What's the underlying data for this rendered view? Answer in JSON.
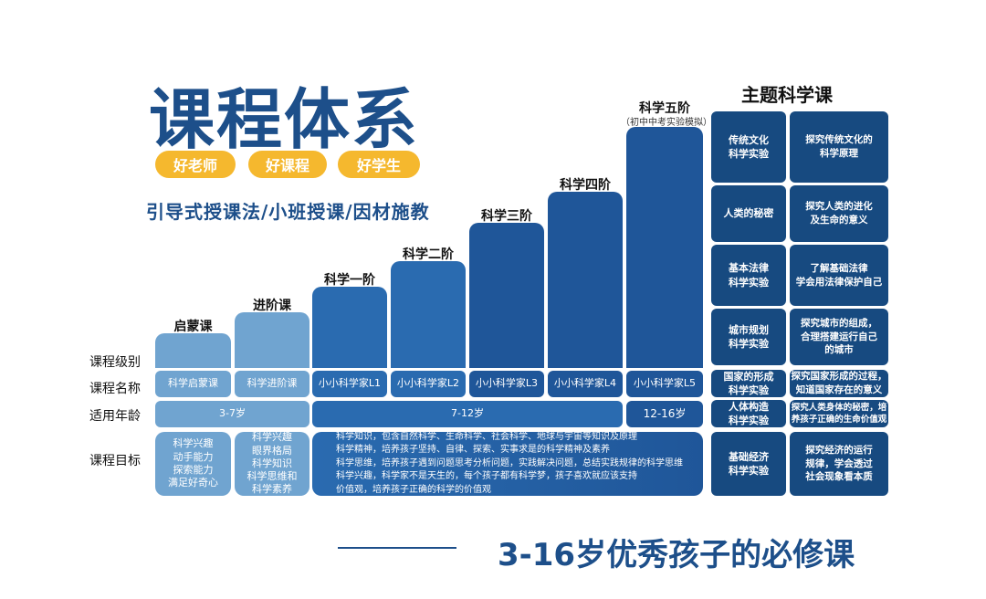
{
  "title": "课程体系",
  "pills": [
    "好老师",
    "好课程",
    "好学生"
  ],
  "subtitle": "引导式授课法/小班授课/因材施教",
  "row_labels": [
    "课程级别",
    "课程名称",
    "适用年龄",
    "课程目标"
  ],
  "levels": [
    {
      "label": "启蒙课",
      "name": "科学启蒙课"
    },
    {
      "label": "进阶课",
      "name": "科学进阶课"
    },
    {
      "label": "科学一阶",
      "name": "小小科学家L1"
    },
    {
      "label": "科学二阶",
      "name": "小小科学家L2"
    },
    {
      "label": "科学三阶",
      "name": "小小科学家L3"
    },
    {
      "label": "科学四阶",
      "name": "小小科学家L4"
    },
    {
      "label": "科学五阶",
      "sublabel": "（初中中考实验模拟）",
      "name": "小小科学家L5"
    }
  ],
  "ages": [
    "3-7岁",
    "7-12岁",
    "12-16岁"
  ],
  "goals": {
    "g1": [
      "科学兴趣",
      "动手能力",
      "探索能力",
      "满足好奇心"
    ],
    "g2": [
      "科学兴趣",
      "眼界格局",
      "科学知识",
      "科学思维和",
      "科学素养"
    ],
    "g3": [
      "科学知识，包含自然科学、生命科学、社会科学、地球与宇宙等知识及原理",
      "科学精神，培养孩子坚持、自律、探索、实事求是的科学精神及素养",
      "科学思维，培养孩子遇到问题思考分析问题，实践解决问题，总结实践规律的科学思维",
      "科学兴趣，科学家不是天生的，每个孩子都有科学梦，孩子喜欢就应该支持",
      "价值观，培养孩子正确的科学的价值观"
    ]
  },
  "theme": {
    "title": "主题科学课",
    "rows": [
      {
        "topic": "传统文化\n科学实验",
        "desc": "探究传统文化的\n科学原理"
      },
      {
        "topic": "人类的秘密",
        "desc": "探究人类的进化\n及生命的意义"
      },
      {
        "topic": "基本法律\n科学实验",
        "desc": "了解基础法律\n学会用法律保护自己"
      },
      {
        "topic": "城市规划\n科学实验",
        "desc": "探究城市的组成，\n合理搭建运行自己\n的城市"
      },
      {
        "topic": "国家的形成\n科学实验",
        "desc": "探究国家形成的过程，\n知道国家存在的意义"
      },
      {
        "topic": "人体构造\n科学实验",
        "desc": "探究人类身体的秘密，培\n养孩子正确的生命价值观"
      },
      {
        "topic": "基础经济\n科学实验",
        "desc": "探究经济的运行\n规律，学会透过\n社会现象看本质"
      }
    ]
  },
  "slogan": "3-16岁优秀孩子的必修课",
  "colors": {
    "primary": "#1d4f8a",
    "accent": "#f5b82e",
    "light": "#70a4d0",
    "mid": "#2a6bb0",
    "dark": "#1f5699",
    "panel": "#174a80"
  }
}
